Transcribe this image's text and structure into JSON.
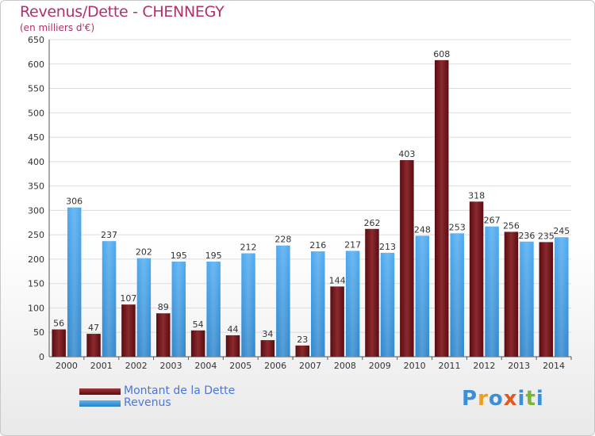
{
  "header": {
    "title": "Revenus/Dette - CHENNEGY",
    "subtitle": "(en milliers d'€)"
  },
  "chart_data": {
    "type": "bar",
    "title": "Revenus/Dette - CHENNEGY",
    "subtitle": "(en milliers d'€)",
    "categories": [
      "2000",
      "2001",
      "2002",
      "2003",
      "2004",
      "2005",
      "2006",
      "2007",
      "2008",
      "2009",
      "2010",
      "2011",
      "2012",
      "2013",
      "2014"
    ],
    "series": [
      {
        "name": "Montant de la Dette",
        "color": "#7a1a1e",
        "values": [
          56,
          47,
          107,
          89,
          54,
          44,
          34,
          23,
          144,
          262,
          403,
          608,
          318,
          256,
          235
        ],
        "labels": [
          "56",
          "47",
          "107",
          "89",
          "54",
          "44",
          "34",
          "23",
          "144",
          "262",
          "403",
          "608",
          "318",
          "256",
          "235"
        ]
      },
      {
        "name": "Revenus",
        "color": "#3f9ee2",
        "values": [
          306,
          237,
          202,
          195,
          195,
          212,
          228,
          216,
          217,
          213,
          248,
          253,
          267,
          236,
          245
        ],
        "labels": [
          "306",
          "237",
          "202",
          "195",
          "195",
          "212",
          "228",
          "216",
          "217",
          "213",
          "248",
          "253",
          "267",
          "236",
          "245"
        ]
      }
    ],
    "ylim": [
      0,
      650
    ],
    "yticks": [
      0,
      50,
      100,
      150,
      200,
      250,
      300,
      350,
      400,
      450,
      500,
      550,
      600,
      650
    ],
    "grid": true,
    "legend": "bottom-left"
  },
  "legend": {
    "items": [
      {
        "label": "Montant de la Dette",
        "color": "#7a1a1e"
      },
      {
        "label": "Revenus",
        "color": "#3f9ee2"
      }
    ]
  },
  "logo": {
    "text": "Proxiti",
    "colors": [
      "#3b8fd6",
      "#e8a020",
      "#3b8fd6",
      "#e05a20",
      "#3b8fd6",
      "#7ab830",
      "#3b8fd6"
    ]
  }
}
